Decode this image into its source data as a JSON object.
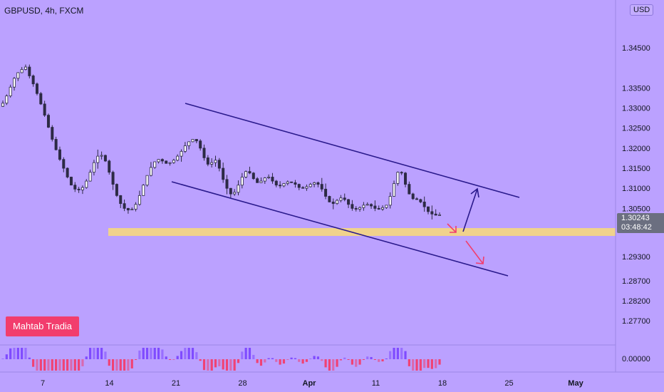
{
  "header": {
    "symbol": "GBPUSD, 4h, FXCM",
    "currency": "USD"
  },
  "watermark": "Mahtab Tradia",
  "last_price": {
    "price": "1.30243",
    "countdown": "03:48:42"
  },
  "axes": {
    "price_ticks": [
      "1.34500",
      "1.33500",
      "1.33000",
      "1.32500",
      "1.32000",
      "1.31500",
      "1.31000",
      "1.30500",
      "1.29300",
      "1.28700",
      "1.28200",
      "1.27700"
    ],
    "osc_tick": "0.00000",
    "time_ticks": [
      "7",
      "14",
      "21",
      "28",
      "Apr",
      "11",
      "18",
      "25",
      "May"
    ]
  },
  "colors": {
    "background": "#bba1ff",
    "candle": "#2d2a45",
    "channel": "#2a1a8c",
    "support_zone": "#f0d28c",
    "arrow_down": "#f23d6d",
    "arrow_up": "#2a1a8c",
    "osc_positive": "#7b47ff",
    "osc_negative": "#f23d6d"
  },
  "chart_data": {
    "type": "candlestick",
    "symbol": "GBPUSD",
    "interval": "4h",
    "ylim": [
      1.2745,
      1.3495
    ],
    "close_series": [
      1.3312,
      1.333,
      1.3352,
      1.3374,
      1.3388,
      1.3396,
      1.3402,
      1.338,
      1.336,
      1.3336,
      1.331,
      1.3282,
      1.3252,
      1.3222,
      1.3196,
      1.3172,
      1.315,
      1.3128,
      1.3108,
      1.3098,
      1.3096,
      1.3102,
      1.3118,
      1.314,
      1.3164,
      1.318,
      1.3182,
      1.3168,
      1.314,
      1.311,
      1.3082,
      1.3062,
      1.305,
      1.3046,
      1.3048,
      1.306,
      1.3082,
      1.3108,
      1.3132,
      1.3152,
      1.3166,
      1.3172,
      1.3168,
      1.3162,
      1.3164,
      1.317,
      1.318,
      1.3192,
      1.3206,
      1.3216,
      1.3222,
      1.3218,
      1.32,
      1.3176,
      1.316,
      1.3164,
      1.317,
      1.315,
      1.3122,
      1.31,
      1.3086,
      1.309,
      1.3108,
      1.3128,
      1.3142,
      1.3138,
      1.3124,
      1.3114,
      1.3118,
      1.3126,
      1.3128,
      1.3118,
      1.3108,
      1.3106,
      1.3112,
      1.3116,
      1.3114,
      1.311,
      1.3102,
      1.31,
      1.3104,
      1.311,
      1.3114,
      1.311,
      1.3098,
      1.308,
      1.3066,
      1.3062,
      1.307,
      1.3076,
      1.3072,
      1.306,
      1.305,
      1.3048,
      1.3052,
      1.3058,
      1.306,
      1.3056,
      1.305,
      1.3048,
      1.3052,
      1.3058,
      1.308,
      1.3112,
      1.314,
      1.3138,
      1.311,
      1.3086,
      1.3074,
      1.3072,
      1.3066,
      1.3054,
      1.3042,
      1.3036,
      1.3033,
      1.3034
    ]
  }
}
